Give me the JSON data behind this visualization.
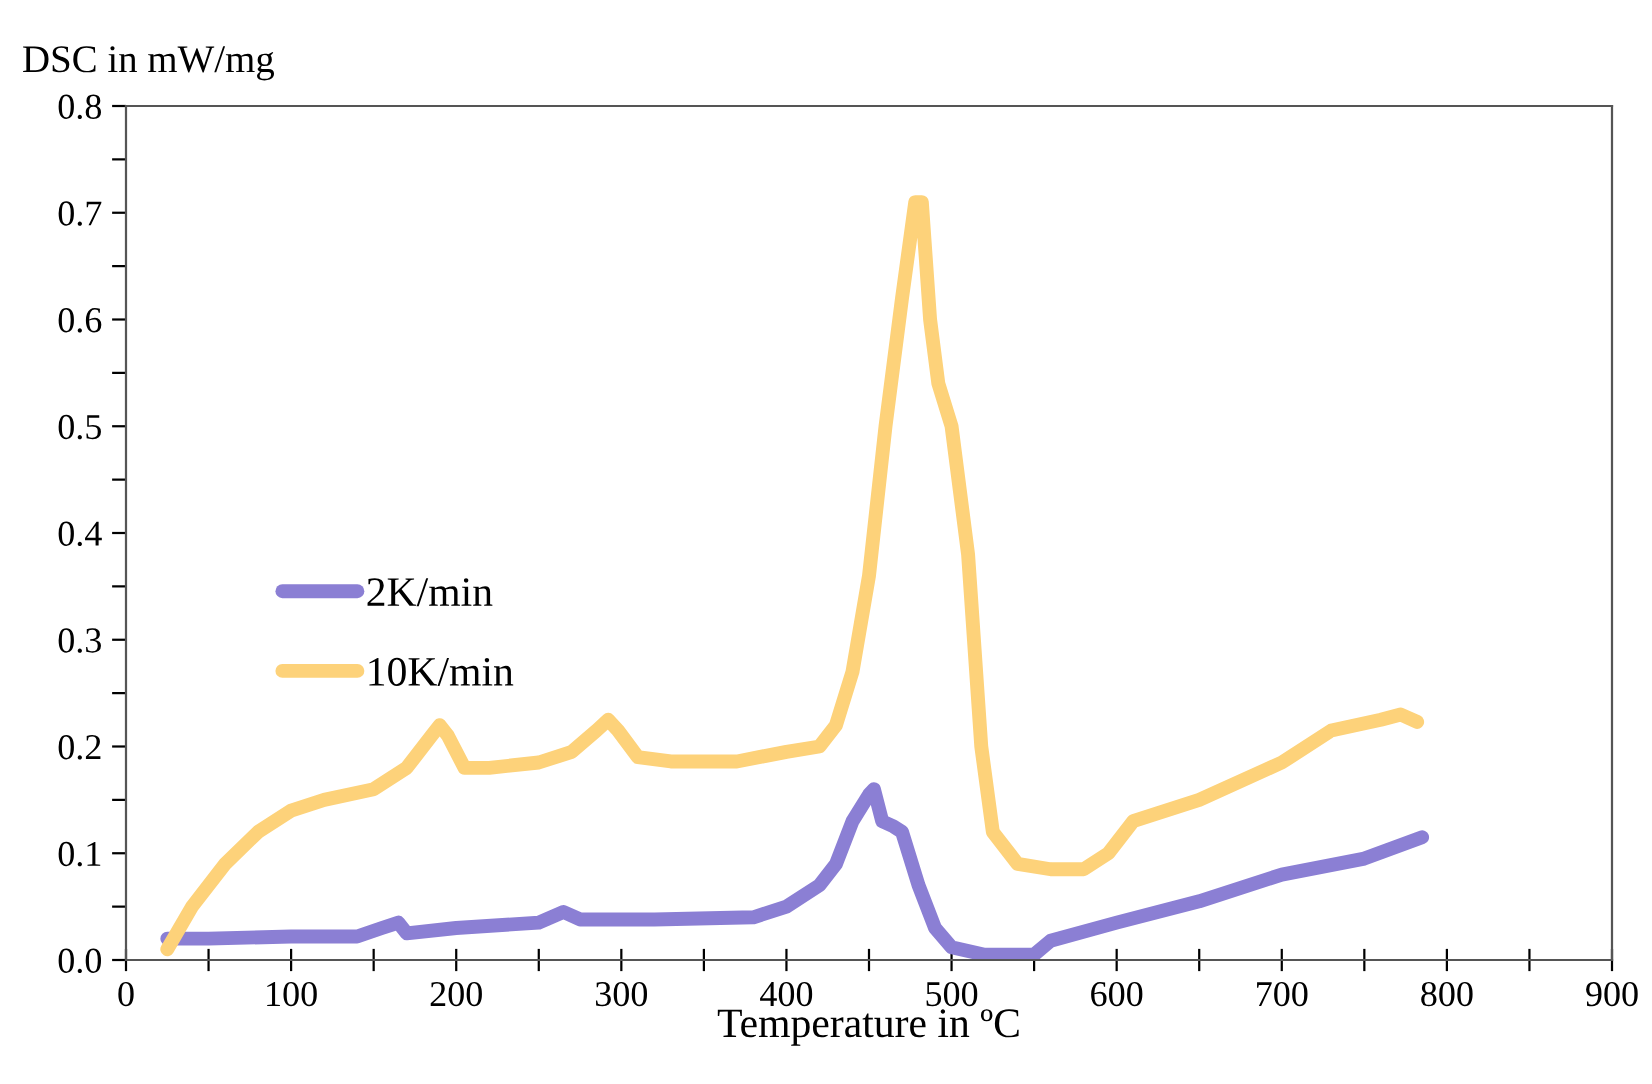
{
  "chart_data": {
    "type": "line",
    "xlabel": "Temperature in ºC",
    "ylabel": "DSC in mW/mg",
    "xlim": [
      0,
      900
    ],
    "ylim": [
      0,
      0.8
    ],
    "xticks": [
      0,
      {
        "value": 50,
        "label": null
      },
      100,
      {
        "value": 150,
        "label": null
      },
      200,
      {
        "value": 250,
        "label": null
      },
      300,
      {
        "value": 350,
        "label": null
      },
      400,
      {
        "value": 450,
        "label": null
      },
      500,
      {
        "value": 550,
        "label": null
      },
      600,
      {
        "value": 650,
        "label": null
      },
      700,
      {
        "value": 750,
        "label": null
      },
      800,
      {
        "value": 850,
        "label": null
      },
      900
    ],
    "yticks": [
      {
        "value": 0,
        "label": "0.0"
      },
      {
        "value": 0.05,
        "label": null
      },
      {
        "value": 0.1,
        "label": "0.1"
      },
      {
        "value": 0.15,
        "label": null
      },
      {
        "value": 0.2,
        "label": "0.2"
      },
      {
        "value": 0.25,
        "label": null
      },
      {
        "value": 0.3,
        "label": "0.3"
      },
      {
        "value": 0.35,
        "label": null
      },
      {
        "value": 0.4,
        "label": "0.4"
      },
      {
        "value": 0.45,
        "label": null
      },
      {
        "value": 0.5,
        "label": "0.5"
      },
      {
        "value": 0.55,
        "label": null
      },
      {
        "value": 0.6,
        "label": "0.6"
      },
      {
        "value": 0.65,
        "label": null
      },
      {
        "value": 0.7,
        "label": "0.7"
      },
      {
        "value": 0.75,
        "label": null
      },
      {
        "value": 0.8,
        "label": "0.8"
      }
    ],
    "grid": false,
    "legend": "left",
    "marker": "none",
    "line_style": "solid",
    "series": [
      {
        "name": "2K/min",
        "color": "#8b7fd4",
        "x": [
          25,
          50,
          100,
          140,
          155,
          165,
          170,
          200,
          250,
          265,
          275,
          320,
          380,
          400,
          420,
          430,
          440,
          450,
          453,
          458,
          465,
          470,
          480,
          490,
          500,
          520,
          550,
          560,
          600,
          650,
          700,
          750,
          785
        ],
        "values": [
          0.02,
          0.02,
          0.022,
          0.022,
          0.03,
          0.035,
          0.025,
          0.03,
          0.035,
          0.045,
          0.038,
          0.038,
          0.04,
          0.05,
          0.07,
          0.09,
          0.13,
          0.155,
          0.16,
          0.13,
          0.125,
          0.12,
          0.07,
          0.03,
          0.012,
          0.005,
          0.005,
          0.018,
          0.035,
          0.055,
          0.08,
          0.095,
          0.115
        ]
      },
      {
        "name": "10K/min",
        "color": "#fdd27a",
        "x": [
          25,
          40,
          60,
          80,
          100,
          120,
          150,
          170,
          185,
          190,
          195,
          205,
          220,
          250,
          270,
          285,
          292,
          298,
          310,
          330,
          370,
          400,
          420,
          430,
          440,
          450,
          460,
          470,
          478,
          482,
          487,
          492,
          500,
          510,
          518,
          525,
          540,
          560,
          580,
          595,
          610,
          650,
          700,
          730,
          760,
          772,
          782
        ],
        "values": [
          0.01,
          0.05,
          0.09,
          0.12,
          0.14,
          0.15,
          0.16,
          0.18,
          0.21,
          0.22,
          0.21,
          0.18,
          0.18,
          0.185,
          0.195,
          0.215,
          0.225,
          0.215,
          0.19,
          0.186,
          0.186,
          0.195,
          0.2,
          0.22,
          0.27,
          0.36,
          0.5,
          0.62,
          0.71,
          0.71,
          0.6,
          0.54,
          0.5,
          0.38,
          0.2,
          0.12,
          0.09,
          0.085,
          0.085,
          0.1,
          0.13,
          0.15,
          0.185,
          0.215,
          0.225,
          0.23,
          0.223
        ]
      }
    ]
  }
}
